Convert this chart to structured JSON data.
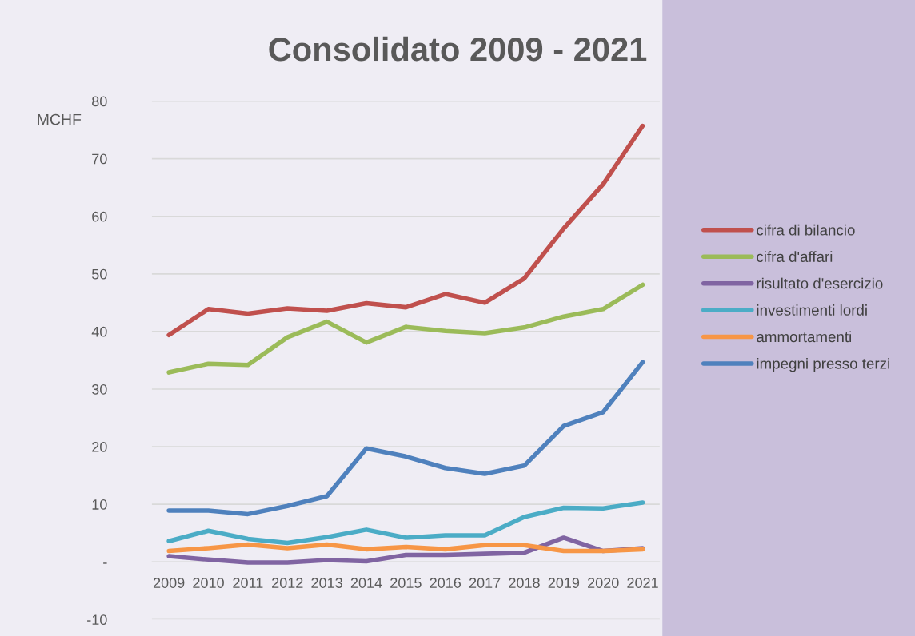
{
  "chart_data": {
    "type": "line",
    "title": "Consolidato 2009 - 2021",
    "ylabel": "MCHF",
    "categories": [
      "2009",
      "2010",
      "2011",
      "2012",
      "2013",
      "2014",
      "2015",
      "2016",
      "2017",
      "2018",
      "2019",
      "2020",
      "2021"
    ],
    "series": [
      {
        "name": "cifra di bilancio",
        "color": "#c0504d",
        "values": [
          39.4,
          43.9,
          43.1,
          44.0,
          43.6,
          44.9,
          44.2,
          46.5,
          45.0,
          49.2,
          57.9,
          65.6,
          75.7
        ]
      },
      {
        "name": "cifra d'affari",
        "color": "#9bbb59",
        "values": [
          32.9,
          34.4,
          34.2,
          39.0,
          41.7,
          38.1,
          40.8,
          40.1,
          39.7,
          40.7,
          42.6,
          43.9,
          48.1
        ]
      },
      {
        "name": "risultato d'esercizio",
        "color": "#8064a2",
        "values": [
          1.0,
          0.4,
          -0.1,
          -0.1,
          0.3,
          0.1,
          1.2,
          1.2,
          1.4,
          1.6,
          4.2,
          1.9,
          2.4
        ]
      },
      {
        "name": "investimenti lordi",
        "color": "#4bacc6",
        "values": [
          3.6,
          5.4,
          4.0,
          3.3,
          4.3,
          5.6,
          4.2,
          4.6,
          4.6,
          7.8,
          9.4,
          9.3,
          10.3
        ]
      },
      {
        "name": "ammortamenti",
        "color": "#f79646",
        "values": [
          1.9,
          2.4,
          3.0,
          2.4,
          3.0,
          2.2,
          2.6,
          2.2,
          2.9,
          2.9,
          1.9,
          1.9,
          2.2
        ]
      },
      {
        "name": "impegni presso terzi",
        "color": "#4f81bd",
        "values": [
          8.9,
          8.9,
          8.3,
          9.7,
          11.4,
          19.7,
          18.3,
          16.3,
          15.3,
          16.7,
          23.6,
          26.0,
          34.7
        ]
      }
    ],
    "ylim": [
      -10,
      80
    ],
    "yticks": [
      -10,
      {
        "value": 0,
        "label": "-"
      },
      10,
      20,
      30,
      40,
      50,
      60,
      70,
      80
    ],
    "grid": "y",
    "legend": "right",
    "marker": "none",
    "line_style": "solid"
  }
}
